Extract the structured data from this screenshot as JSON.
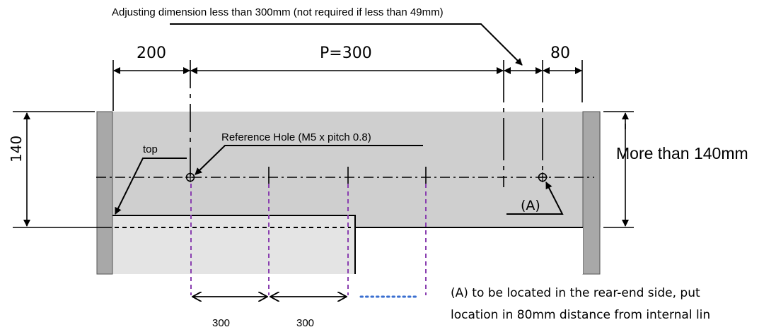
{
  "annotations": {
    "adjusting_note": "Adjusting dimension less than 300mm (not required if less than 49mm)",
    "reference_hole": "Reference Hole (M5 x pitch 0.8)",
    "top": "top",
    "more_than": "More than 140mm",
    "marker_a": "(A)"
  },
  "dimensions": {
    "left_offset": "200",
    "pitch": "P=300",
    "right_offset": "80",
    "height": "140",
    "spacing_1": "300",
    "spacing_2": "300"
  },
  "note": {
    "line1": "(A) to be located in the rear-end side, put",
    "line2": "location in 80mm distance from internal lin"
  },
  "colors": {
    "panel": "#cfcfcf",
    "post": "#a8a8a8",
    "lower_panel": "#e4e4e4",
    "purple_dash": "#8a3fb0",
    "blue_dots": "#3a6fd0"
  }
}
